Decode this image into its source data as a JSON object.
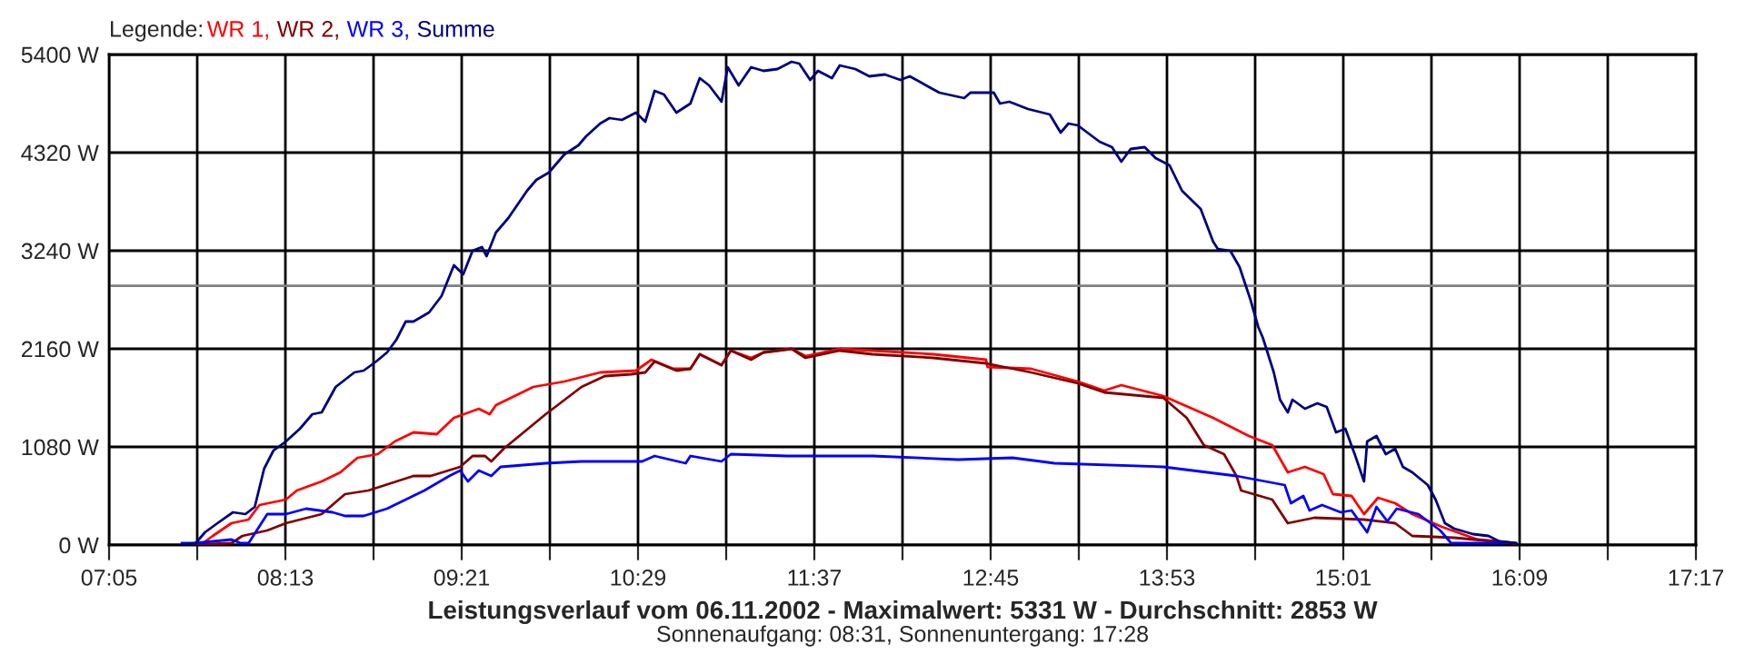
{
  "chart_data": {
    "type": "line",
    "title": "Leistungsverlauf vom 06.11.2002 - Maximalwert: 5331 W - Durchschnitt: 2853 W",
    "subtitle": "Sonnenaufgang: 08:31, Sonnenuntergang: 17:28",
    "legend_title": "Legende:",
    "legend": "top left",
    "grid": true,
    "marker": "none",
    "line_style": "solid",
    "xlim": [
      7.0833,
      17.2833
    ],
    "ylim": [
      0,
      5400
    ],
    "xticks": [
      {
        "value": 7.0833,
        "label": "07:05"
      },
      {
        "value": 7.65,
        "label": null
      },
      {
        "value": 8.2167,
        "label": "08:13"
      },
      {
        "value": 8.7833,
        "label": null
      },
      {
        "value": 9.35,
        "label": "09:21"
      },
      {
        "value": 9.9167,
        "label": null
      },
      {
        "value": 10.4833,
        "label": "10:29"
      },
      {
        "value": 11.05,
        "label": null
      },
      {
        "value": 11.6167,
        "label": "11:37"
      },
      {
        "value": 12.1833,
        "label": null
      },
      {
        "value": 12.75,
        "label": "12:45"
      },
      {
        "value": 13.3167,
        "label": null
      },
      {
        "value": 13.8833,
        "label": "13:53"
      },
      {
        "value": 14.45,
        "label": null
      },
      {
        "value": 15.0167,
        "label": "15:01"
      },
      {
        "value": 15.5833,
        "label": null
      },
      {
        "value": 16.15,
        "label": "16:09"
      },
      {
        "value": 16.7167,
        "label": null
      },
      {
        "value": 17.2833,
        "label": "17:17"
      }
    ],
    "yticks": [
      {
        "value": 0,
        "label": "0 W"
      },
      {
        "value": 1080,
        "label": "1080 W"
      },
      {
        "value": 2160,
        "label": "2160 W"
      },
      {
        "value": 3240,
        "label": "3240 W"
      },
      {
        "value": 4320,
        "label": "4320 W"
      },
      {
        "value": 5400,
        "label": "5400 W"
      }
    ],
    "ref_lines": [
      {
        "axis": "y",
        "value": 2853,
        "color": "#808080"
      }
    ],
    "series": [
      {
        "name": "WR 1,",
        "color": "#ff0000",
        "x": [
          7.67,
          7.75,
          7.87,
          7.98,
          8.05,
          8.22,
          8.29,
          8.45,
          8.57,
          8.68,
          8.81,
          8.92,
          9.04,
          9.19,
          9.3,
          9.46,
          9.53,
          9.57,
          9.81,
          10.01,
          10.24,
          10.47,
          10.57,
          10.71,
          10.82,
          10.88,
          11.02,
          11.08,
          11.21,
          11.29,
          11.47,
          11.56,
          11.78,
          11.99,
          12.38,
          12.72,
          12.73,
          13.01,
          13.31,
          13.48,
          13.59,
          13.86,
          14.18,
          14.41,
          14.56,
          14.66,
          14.77,
          14.89,
          14.95,
          15.07,
          15.15,
          15.24,
          15.35,
          15.46,
          15.65,
          15.88,
          16.12
        ],
        "values": [
          0,
          100,
          240,
          280,
          440,
          500,
          600,
          700,
          800,
          960,
          1000,
          1140,
          1240,
          1220,
          1400,
          1500,
          1440,
          1540,
          1740,
          1800,
          1900,
          1920,
          2040,
          1940,
          1940,
          2100,
          1980,
          2140,
          2060,
          2120,
          2160,
          2080,
          2160,
          2140,
          2100,
          2040,
          1960,
          1940,
          1800,
          1700,
          1760,
          1640,
          1400,
          1200,
          1100,
          800,
          860,
          780,
          560,
          540,
          340,
          520,
          460,
          340,
          200,
          60,
          20
        ]
      },
      {
        "name": "WR 2,",
        "color": "#800000",
        "x": [
          7.59,
          7.87,
          7.94,
          8.1,
          8.22,
          8.45,
          8.6,
          8.75,
          9.04,
          9.15,
          9.34,
          9.42,
          9.5,
          9.54,
          9.62,
          9.89,
          10.12,
          10.27,
          10.44,
          10.53,
          10.59,
          10.73,
          10.82,
          10.88,
          11.02,
          11.08,
          11.21,
          11.29,
          11.47,
          11.56,
          11.78,
          11.99,
          12.38,
          12.72,
          13.01,
          13.31,
          13.48,
          13.86,
          14.01,
          14.12,
          14.25,
          14.33,
          14.36,
          14.56,
          14.66,
          14.83,
          15.15,
          15.35,
          15.46,
          15.73,
          16.12
        ],
        "values": [
          0,
          20,
          100,
          160,
          240,
          340,
          560,
          600,
          760,
          760,
          860,
          980,
          980,
          920,
          1060,
          1440,
          1740,
          1860,
          1880,
          1900,
          2020,
          1920,
          1940,
          2100,
          1980,
          2140,
          2040,
          2120,
          2160,
          2060,
          2140,
          2100,
          2060,
          2000,
          1900,
          1780,
          1680,
          1620,
          1400,
          1100,
          1000,
          760,
          600,
          500,
          240,
          300,
          280,
          240,
          100,
          80,
          20
        ]
      },
      {
        "name": "WR 3,",
        "color": "#0000ff",
        "x": [
          7.55,
          7.63,
          7.87,
          7.93,
          7.98,
          8.1,
          8.22,
          8.35,
          8.52,
          8.6,
          8.72,
          8.87,
          9.11,
          9.27,
          9.34,
          9.39,
          9.46,
          9.54,
          9.6,
          9.89,
          10.12,
          10.51,
          10.59,
          10.79,
          10.82,
          11.02,
          11.08,
          11.44,
          11.99,
          12.54,
          12.89,
          13.16,
          13.86,
          14.33,
          14.64,
          14.68,
          14.76,
          14.8,
          14.88,
          15.0,
          15.07,
          15.17,
          15.23,
          15.3,
          15.36,
          15.5,
          15.64,
          15.71,
          16.05
        ],
        "values": [
          20,
          20,
          60,
          20,
          20,
          340,
          340,
          400,
          360,
          320,
          320,
          400,
          600,
          760,
          820,
          700,
          820,
          760,
          860,
          900,
          920,
          920,
          980,
          900,
          980,
          920,
          1000,
          980,
          980,
          940,
          960,
          900,
          860,
          760,
          660,
          460,
          540,
          380,
          440,
          360,
          380,
          140,
          420,
          260,
          400,
          340,
          160,
          20,
          20
        ]
      },
      {
        "name": "Summe",
        "color": "#000080",
        "x": [
          7.55,
          7.64,
          7.7,
          7.78,
          7.88,
          7.96,
          8.02,
          8.08,
          8.14,
          8.22,
          8.31,
          8.39,
          8.45,
          8.54,
          8.66,
          8.72,
          8.8,
          8.87,
          8.93,
          8.99,
          9.04,
          9.14,
          9.22,
          9.3,
          9.36,
          9.42,
          9.48,
          9.51,
          9.57,
          9.65,
          9.77,
          9.83,
          9.91,
          10.01,
          10.1,
          10.15,
          10.24,
          10.3,
          10.38,
          10.47,
          10.53,
          10.59,
          10.65,
          10.73,
          10.82,
          10.88,
          10.94,
          11.02,
          11.06,
          11.13,
          11.21,
          11.29,
          11.38,
          11.47,
          11.52,
          11.59,
          11.64,
          11.73,
          11.78,
          11.88,
          11.97,
          12.07,
          12.17,
          12.23,
          12.42,
          12.58,
          12.62,
          12.77,
          12.81,
          12.87,
          12.99,
          13.13,
          13.2,
          13.25,
          13.31,
          13.45,
          13.53,
          13.59,
          13.65,
          13.74,
          13.81,
          13.9,
          13.98,
          14.1,
          14.18,
          14.21,
          14.29,
          14.35,
          14.42,
          14.47,
          14.5,
          14.57,
          14.61,
          14.66,
          14.69,
          14.77,
          14.85,
          14.91,
          14.97,
          15.03,
          15.09,
          15.15,
          15.17,
          15.23,
          15.29,
          15.35,
          15.4,
          15.46,
          15.56,
          15.61,
          15.67,
          15.73,
          15.85,
          15.95,
          16.02,
          16.13
        ],
        "values": [
          0,
          20,
          140,
          240,
          360,
          340,
          420,
          840,
          1040,
          1140,
          1280,
          1440,
          1460,
          1740,
          1900,
          1920,
          2020,
          2120,
          2260,
          2460,
          2460,
          2560,
          2740,
          3080,
          2980,
          3240,
          3280,
          3180,
          3440,
          3600,
          3900,
          4020,
          4100,
          4300,
          4400,
          4500,
          4640,
          4700,
          4680,
          4760,
          4660,
          5000,
          4960,
          4760,
          4860,
          5140,
          5060,
          4880,
          5260,
          5060,
          5260,
          5220,
          5240,
          5320,
          5300,
          5120,
          5220,
          5140,
          5280,
          5240,
          5160,
          5180,
          5120,
          5160,
          4980,
          4920,
          4980,
          4980,
          4860,
          4880,
          4800,
          4740,
          4540,
          4640,
          4620,
          4440,
          4380,
          4220,
          4360,
          4380,
          4260,
          4180,
          3900,
          3700,
          3340,
          3260,
          3240,
          3060,
          2700,
          2400,
          2280,
          1900,
          1600,
          1460,
          1600,
          1500,
          1560,
          1520,
          1240,
          1280,
          1000,
          700,
          1140,
          1200,
          1000,
          1060,
          860,
          800,
          660,
          500,
          240,
          180,
          120,
          100,
          40,
          20
        ]
      }
    ]
  }
}
